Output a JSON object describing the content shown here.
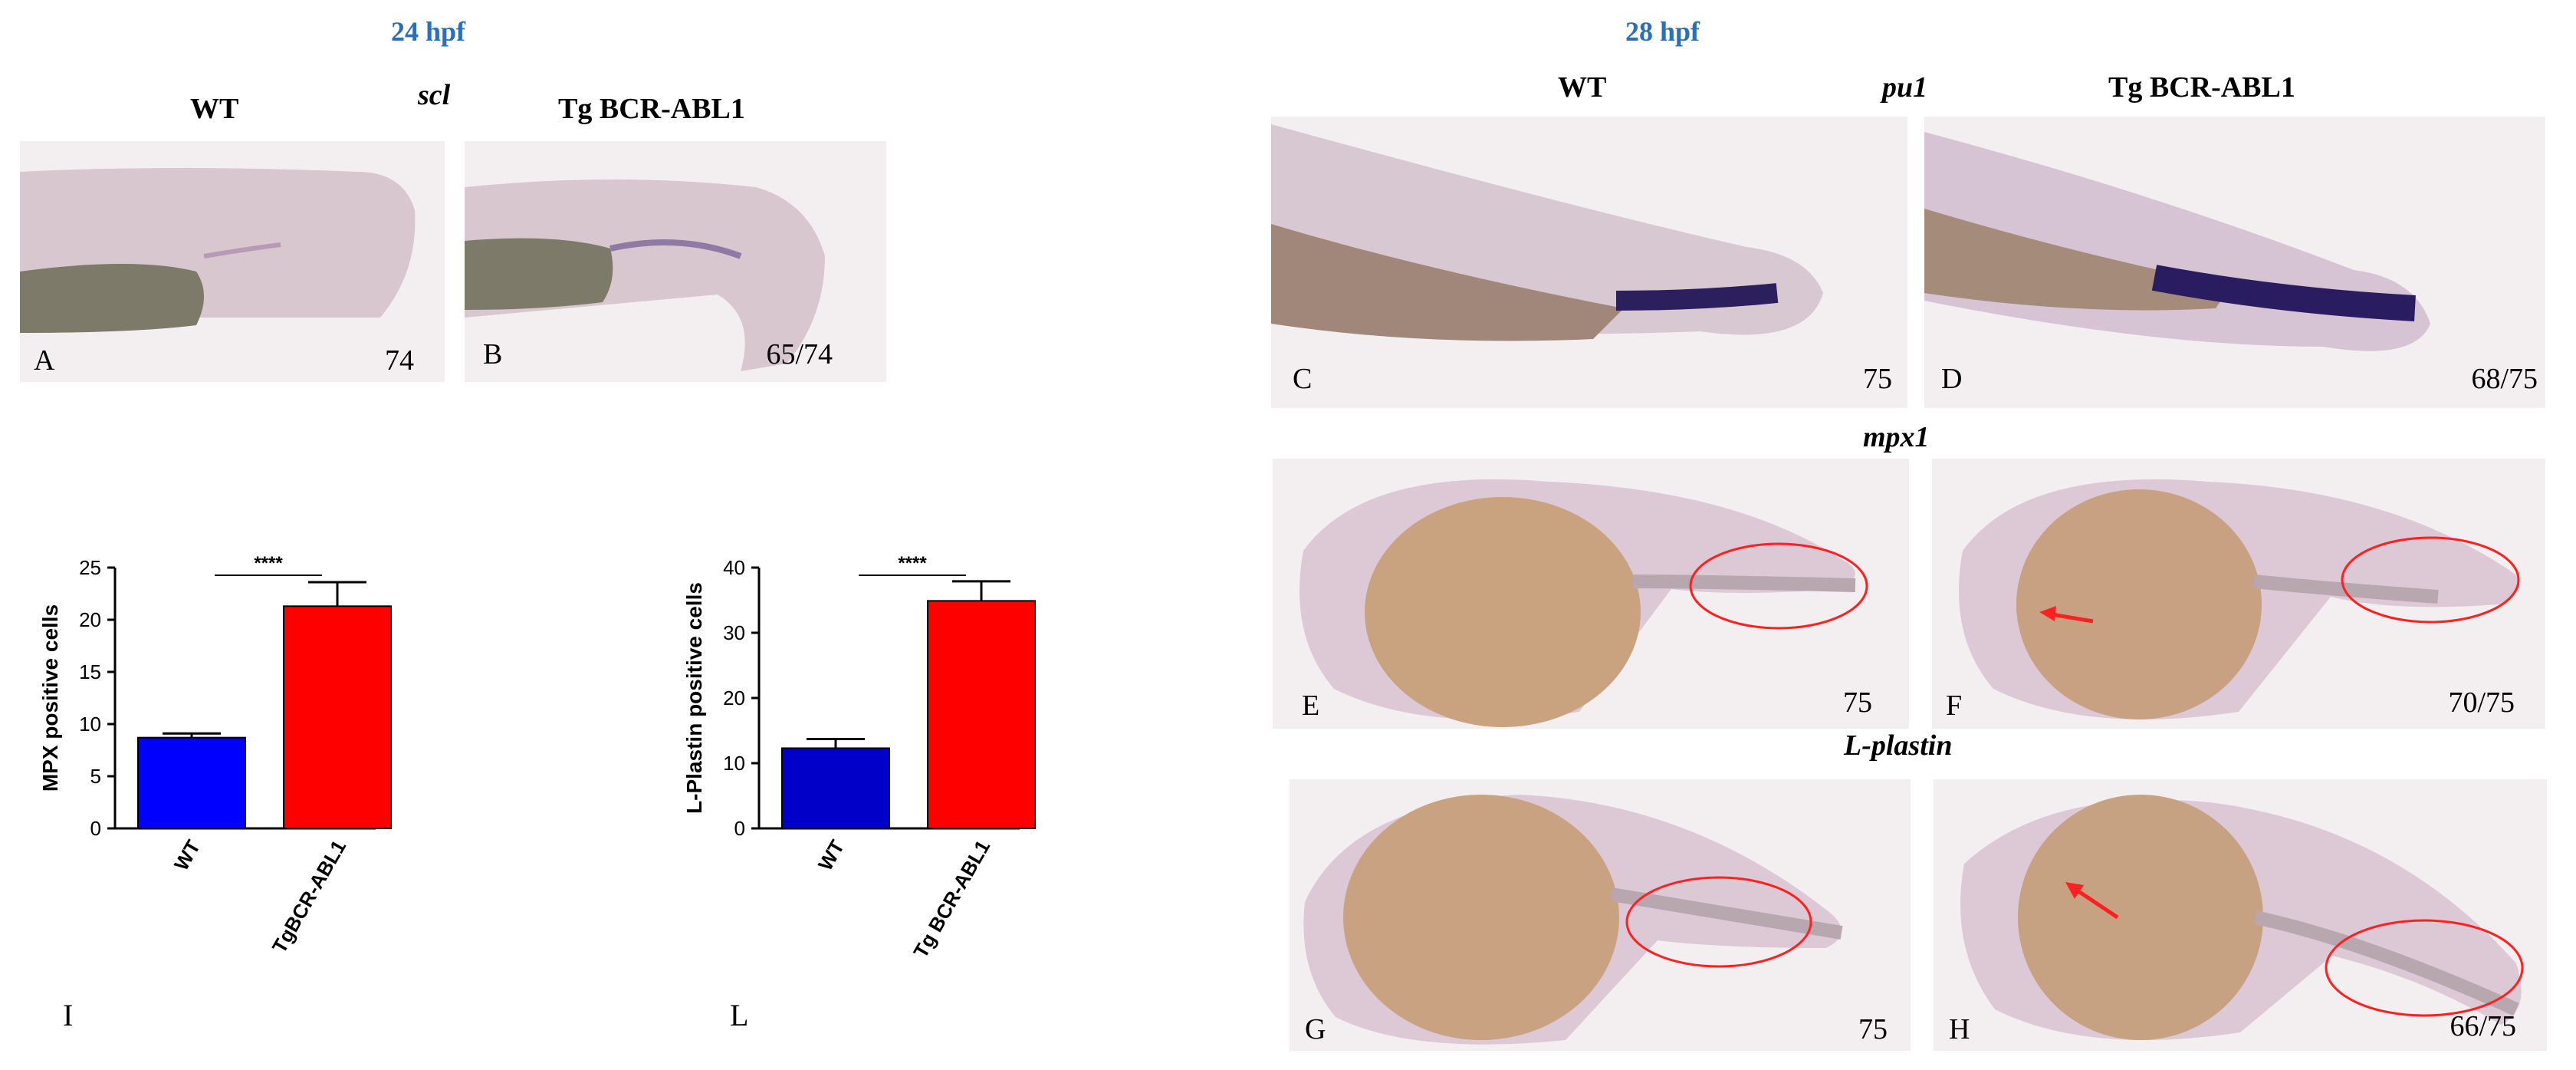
{
  "header": {
    "left_time": "24 hpf",
    "right_time": "28 hpf"
  },
  "left_row": {
    "wt_label": "WT",
    "gene_label": "scl",
    "tg_label": "Tg BCR-ABL1",
    "panels": [
      {
        "letter": "A",
        "count": "74"
      },
      {
        "letter": "B",
        "count": "65/74"
      }
    ]
  },
  "right_block": {
    "wt_label": "WT",
    "tg_label": "Tg BCR-ABL1",
    "gene_pu1": "pu1",
    "gene_mpx1": "mpx1",
    "gene_lplastin": "L-plastin",
    "panels": [
      {
        "letter": "C",
        "count": "75"
      },
      {
        "letter": "D",
        "count": "68/75"
      },
      {
        "letter": "E",
        "count": "75"
      },
      {
        "letter": "F",
        "count": "70/75"
      },
      {
        "letter": "G",
        "count": "75"
      },
      {
        "letter": "H",
        "count": "66/75"
      }
    ]
  },
  "chart_data": [
    {
      "type": "bar",
      "panel_letter": "I",
      "categories": [
        "WT",
        "TgBCR-ABL1"
      ],
      "values": [
        8.7,
        21.3
      ],
      "errors": [
        0.4,
        2.3
      ],
      "colors": [
        "#0000ff",
        "#ff0000"
      ],
      "ylabel": "MPX positive cells",
      "ylim": [
        0,
        25
      ],
      "yticks": [
        "0",
        "5",
        "10",
        "15",
        "20",
        "25"
      ],
      "significance": "****"
    },
    {
      "type": "bar",
      "panel_letter": "L",
      "categories": [
        "WT",
        "Tg BCR-ABL1"
      ],
      "values": [
        12.3,
        34.9
      ],
      "errors": [
        1.4,
        3.0
      ],
      "colors": [
        "#0000c8",
        "#ff0000"
      ],
      "ylabel": "L-Plastin positive cells",
      "ylim": [
        0,
        40
      ],
      "yticks": [
        "0",
        "10",
        "20",
        "30",
        "40"
      ],
      "significance": "****"
    }
  ]
}
